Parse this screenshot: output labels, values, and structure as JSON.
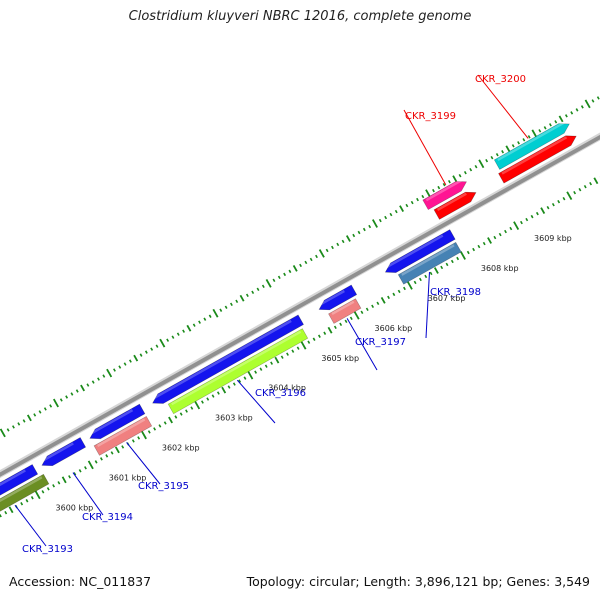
{
  "title": "Clostridium kluyveri NBRC 12016, complete genome",
  "footer": {
    "accession": "Accession: NC_011837",
    "summary": "Topology: circular; Length: 3,896,121 bp; Genes: 3,549"
  },
  "colors": {
    "backbone": "#909090",
    "tick": "#1a8a1a",
    "label_forward": "#ee0000",
    "label_reverse": "#0000cc"
  },
  "ticks": [
    {
      "label": "3600 kbp"
    },
    {
      "label": "3601 kbp"
    },
    {
      "label": "3602 kbp"
    },
    {
      "label": "3603 kbp"
    },
    {
      "label": "3604 kbp"
    },
    {
      "label": "3605 kbp"
    },
    {
      "label": "3606 kbp"
    },
    {
      "label": "3607 kbp"
    },
    {
      "label": "3608 kbp"
    },
    {
      "label": "3609 kbp"
    }
  ],
  "genes": [
    {
      "id": "CKR_3193",
      "strand": "reverse",
      "labeled": true,
      "cds_color": "#1414ee",
      "feature_color": "#6b8e23"
    },
    {
      "id": "CKR_3194",
      "strand": "reverse",
      "labeled": true,
      "cds_color": "#1414ee",
      "feature_color": null
    },
    {
      "id": "CKR_3195",
      "strand": "reverse",
      "labeled": true,
      "cds_color": "#1414ee",
      "feature_color": "#f08080"
    },
    {
      "id": "CKR_3196",
      "strand": "reverse",
      "labeled": true,
      "cds_color": "#1414ee",
      "feature_color": "#adff2f"
    },
    {
      "id": "CKR_3197",
      "strand": "reverse",
      "labeled": true,
      "cds_color": "#1414ee",
      "feature_color": "#f08080"
    },
    {
      "id": "CKR_3198",
      "strand": "reverse",
      "labeled": true,
      "cds_color": "#1414ee",
      "feature_color": "#4682b4"
    },
    {
      "id": "CKR_3199",
      "strand": "forward",
      "labeled": true,
      "cds_color": "#ff0000",
      "feature_color": "#ff1493"
    },
    {
      "id": "CKR_3200",
      "strand": "forward",
      "labeled": true,
      "cds_color": "#ff0000",
      "feature_color": "#00ced1"
    }
  ]
}
